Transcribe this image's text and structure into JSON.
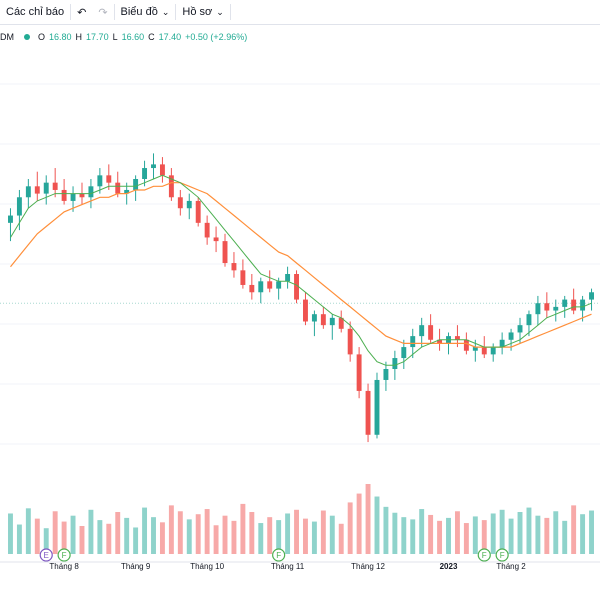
{
  "toolbar": {
    "indicators_label": "Các chỉ báo",
    "undo_icon": "undo-icon",
    "redo_icon": "redo-icon",
    "chart_type_label": "Biểu đồ",
    "profile_label": "Hồ sơ"
  },
  "legend": {
    "symbol": "DM",
    "o_label": "O",
    "o_value": "16.80",
    "h_label": "H",
    "h_value": "17.70",
    "l_label": "L",
    "l_value": "16.60",
    "c_label": "C",
    "c_value": "17.40",
    "change": "+0.50 (+2.96%)"
  },
  "colors": {
    "up": "#26a69a",
    "down": "#ef5350",
    "ma_fast": "#4caf50",
    "ma_slow": "#ff8f3a",
    "vol_up": "#8fd3cb",
    "vol_down": "#f7a9a8",
    "price_line": "#a8d8d0",
    "event_e": "#7e57c2",
    "event_f": "#4caf50"
  },
  "chart_data": {
    "type": "candlestick",
    "ohlc": [
      [
        16.4,
        16.8,
        15.9,
        16.6
      ],
      [
        16.6,
        17.3,
        16.2,
        17.1
      ],
      [
        17.1,
        17.6,
        16.8,
        17.4
      ],
      [
        17.4,
        17.8,
        17.0,
        17.2
      ],
      [
        17.2,
        17.7,
        16.9,
        17.5
      ],
      [
        17.5,
        17.9,
        17.1,
        17.3
      ],
      [
        17.3,
        17.6,
        16.9,
        17.0
      ],
      [
        17.0,
        17.4,
        16.7,
        17.2
      ],
      [
        17.2,
        17.5,
        16.9,
        17.1
      ],
      [
        17.1,
        17.6,
        16.8,
        17.4
      ],
      [
        17.4,
        17.9,
        17.2,
        17.7
      ],
      [
        17.7,
        18.0,
        17.3,
        17.5
      ],
      [
        17.5,
        17.8,
        17.1,
        17.2
      ],
      [
        17.2,
        17.5,
        16.9,
        17.3
      ],
      [
        17.3,
        17.7,
        17.0,
        17.6
      ],
      [
        17.6,
        18.1,
        17.4,
        17.9
      ],
      [
        17.9,
        18.3,
        17.6,
        18.0
      ],
      [
        18.0,
        18.2,
        17.5,
        17.7
      ],
      [
        17.7,
        17.9,
        17.0,
        17.1
      ],
      [
        17.1,
        17.3,
        16.6,
        16.8
      ],
      [
        16.8,
        17.2,
        16.5,
        17.0
      ],
      [
        17.0,
        17.1,
        16.3,
        16.4
      ],
      [
        16.4,
        16.6,
        15.8,
        16.0
      ],
      [
        16.0,
        16.3,
        15.6,
        15.9
      ],
      [
        15.9,
        16.1,
        15.2,
        15.3
      ],
      [
        15.3,
        15.6,
        14.9,
        15.1
      ],
      [
        15.1,
        15.4,
        14.6,
        14.7
      ],
      [
        14.7,
        15.0,
        14.3,
        14.5
      ],
      [
        14.5,
        14.9,
        14.2,
        14.8
      ],
      [
        14.8,
        15.1,
        14.5,
        14.6
      ],
      [
        14.6,
        14.9,
        14.3,
        14.8
      ],
      [
        14.8,
        15.2,
        14.6,
        15.0
      ],
      [
        15.0,
        15.1,
        14.2,
        14.3
      ],
      [
        14.3,
        14.5,
        13.6,
        13.7
      ],
      [
        13.7,
        14.0,
        13.3,
        13.9
      ],
      [
        13.9,
        14.1,
        13.5,
        13.6
      ],
      [
        13.6,
        13.9,
        13.2,
        13.8
      ],
      [
        13.8,
        14.0,
        13.4,
        13.5
      ],
      [
        13.5,
        13.7,
        12.6,
        12.8
      ],
      [
        12.8,
        13.0,
        11.6,
        11.8
      ],
      [
        11.8,
        12.0,
        10.4,
        10.6
      ],
      [
        10.6,
        12.3,
        10.5,
        12.1
      ],
      [
        12.1,
        12.6,
        11.8,
        12.4
      ],
      [
        12.4,
        12.9,
        12.1,
        12.7
      ],
      [
        12.7,
        13.2,
        12.4,
        13.0
      ],
      [
        13.0,
        13.5,
        12.7,
        13.3
      ],
      [
        13.3,
        13.8,
        13.0,
        13.6
      ],
      [
        13.6,
        13.9,
        13.1,
        13.2
      ],
      [
        13.2,
        13.5,
        12.9,
        13.1
      ],
      [
        13.1,
        13.4,
        12.8,
        13.3
      ],
      [
        13.3,
        13.6,
        13.0,
        13.2
      ],
      [
        13.2,
        13.4,
        12.8,
        12.9
      ],
      [
        12.9,
        13.2,
        12.6,
        13.0
      ],
      [
        13.0,
        13.3,
        12.7,
        12.8
      ],
      [
        12.8,
        13.1,
        12.6,
        13.0
      ],
      [
        13.0,
        13.4,
        12.8,
        13.2
      ],
      [
        13.2,
        13.5,
        12.9,
        13.4
      ],
      [
        13.4,
        13.8,
        13.1,
        13.6
      ],
      [
        13.6,
        14.0,
        13.3,
        13.9
      ],
      [
        13.9,
        14.4,
        13.6,
        14.2
      ],
      [
        14.2,
        14.5,
        13.8,
        14.0
      ],
      [
        14.0,
        14.3,
        13.7,
        14.1
      ],
      [
        14.1,
        14.4,
        13.8,
        14.3
      ],
      [
        14.3,
        14.6,
        13.9,
        14.0
      ],
      [
        14.0,
        14.4,
        13.7,
        14.3
      ],
      [
        14.3,
        14.6,
        14.0,
        14.5
      ]
    ],
    "volume": [
      55,
      40,
      62,
      48,
      35,
      58,
      44,
      52,
      38,
      60,
      46,
      41,
      57,
      49,
      36,
      63,
      50,
      43,
      66,
      58,
      47,
      54,
      61,
      39,
      52,
      45,
      68,
      57,
      42,
      50,
      46,
      55,
      60,
      48,
      44,
      59,
      52,
      41,
      70,
      82,
      95,
      78,
      64,
      56,
      50,
      47,
      61,
      53,
      45,
      49,
      58,
      42,
      51,
      46,
      55,
      60,
      48,
      57,
      63,
      52,
      49,
      58,
      45,
      66,
      54,
      59
    ],
    "ma_fast": [
      16.0,
      16.4,
      16.8,
      17.0,
      17.1,
      17.2,
      17.2,
      17.2,
      17.2,
      17.2,
      17.3,
      17.4,
      17.4,
      17.4,
      17.4,
      17.5,
      17.6,
      17.7,
      17.6,
      17.5,
      17.3,
      17.1,
      16.8,
      16.5,
      16.2,
      15.9,
      15.6,
      15.3,
      15.0,
      14.9,
      14.8,
      14.8,
      14.7,
      14.5,
      14.3,
      14.1,
      13.9,
      13.8,
      13.6,
      13.3,
      12.9,
      12.6,
      12.5,
      12.5,
      12.6,
      12.8,
      13.0,
      13.1,
      13.2,
      13.2,
      13.2,
      13.2,
      13.1,
      13.0,
      13.0,
      13.0,
      13.1,
      13.2,
      13.4,
      13.6,
      13.8,
      13.9,
      14.0,
      14.1,
      14.1,
      14.2
    ],
    "ma_slow": [
      15.2,
      15.5,
      15.8,
      16.1,
      16.3,
      16.5,
      16.7,
      16.8,
      16.9,
      17.0,
      17.1,
      17.1,
      17.2,
      17.2,
      17.3,
      17.3,
      17.4,
      17.4,
      17.5,
      17.5,
      17.4,
      17.3,
      17.2,
      17.0,
      16.8,
      16.6,
      16.4,
      16.2,
      16.0,
      15.8,
      15.6,
      15.5,
      15.3,
      15.1,
      14.9,
      14.7,
      14.5,
      14.3,
      14.1,
      13.9,
      13.7,
      13.5,
      13.3,
      13.2,
      13.1,
      13.1,
      13.1,
      13.1,
      13.1,
      13.1,
      13.1,
      13.1,
      13.0,
      13.0,
      13.0,
      13.0,
      13.0,
      13.1,
      13.2,
      13.3,
      13.4,
      13.5,
      13.6,
      13.7,
      13.8,
      13.9
    ],
    "x_tick_labels": [
      "Tháng 8",
      "Tháng 9",
      "Tháng 10",
      "Tháng 11",
      "Tháng 12",
      "2023",
      "Tháng 2"
    ],
    "x_tick_index": [
      6,
      14,
      22,
      31,
      40,
      49,
      56
    ],
    "events": [
      {
        "index": 4,
        "letter": "E",
        "kind": "e"
      },
      {
        "index": 6,
        "letter": "F",
        "kind": "f"
      },
      {
        "index": 30,
        "letter": "F",
        "kind": "f"
      },
      {
        "index": 53,
        "letter": "F",
        "kind": "f"
      },
      {
        "index": 55,
        "letter": "F",
        "kind": "f"
      }
    ],
    "price_line": 14.2,
    "ylim": [
      9.8,
      20.2
    ]
  }
}
